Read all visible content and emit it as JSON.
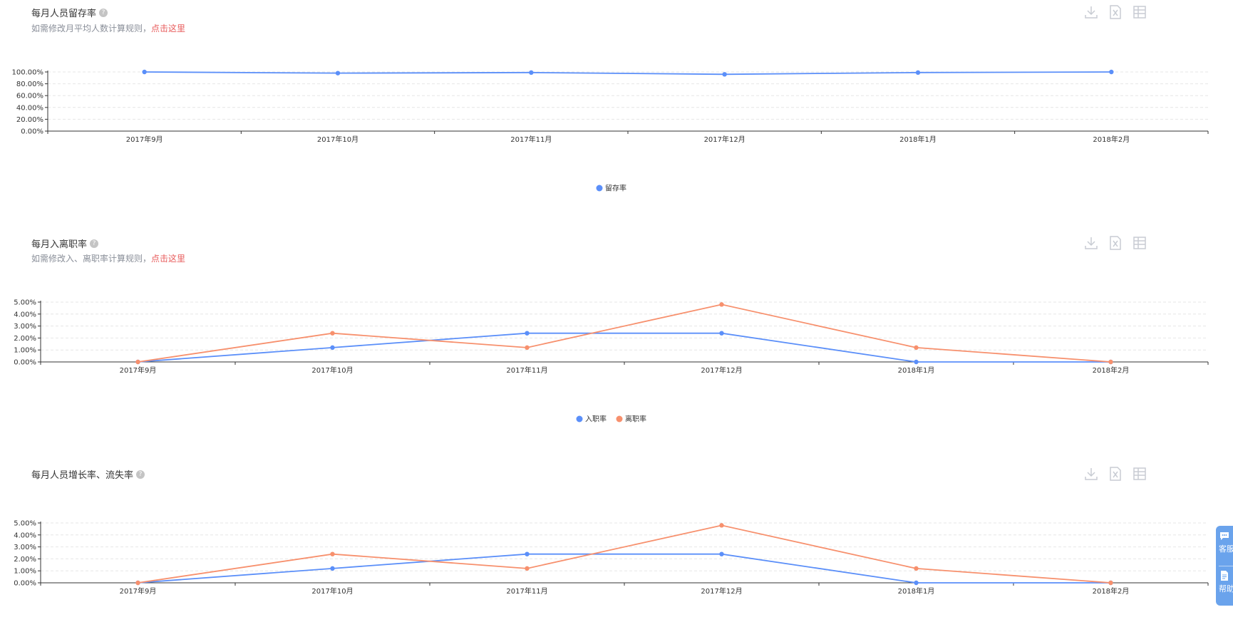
{
  "colors": {
    "blue": "#5b8ff9",
    "orange": "#f7906d",
    "link": "#e85c5c"
  },
  "toolbar_icons": [
    "download-icon",
    "excel-icon",
    "table-icon"
  ],
  "sections": [
    {
      "title": "每月人员留存率",
      "subtitle_text": "如需修改月平均人数计算规则，",
      "subtitle_link": "点击这里",
      "chart_data": {
        "type": "line",
        "categories": [
          "2017年9月",
          "2017年10月",
          "2017年11月",
          "2017年12月",
          "2018年1月",
          "2018年2月"
        ],
        "yticks": [
          "0.00%",
          "20.00%",
          "40.00%",
          "60.00%",
          "80.00%",
          "100.00%"
        ],
        "ylim": [
          0,
          100
        ],
        "series": [
          {
            "name": "留存率",
            "color": "#5b8ff9",
            "values": [
              100,
              98,
              99,
              96,
              99,
              100
            ]
          }
        ],
        "legend": "bottom-center"
      }
    },
    {
      "title": "每月入离职率",
      "subtitle_text": "如需修改入、离职率计算规则，",
      "subtitle_link": "点击这里",
      "chart_data": {
        "type": "line",
        "categories": [
          "2017年9月",
          "2017年10月",
          "2017年11月",
          "2017年12月",
          "2018年1月",
          "2018年2月"
        ],
        "yticks": [
          "0.00%",
          "1.00%",
          "2.00%",
          "3.00%",
          "4.00%",
          "5.00%"
        ],
        "ylim": [
          0,
          5
        ],
        "series": [
          {
            "name": "入职率",
            "color": "#5b8ff9",
            "values": [
              0,
              1.2,
              2.4,
              2.4,
              0,
              0
            ]
          },
          {
            "name": "离职率",
            "color": "#f7906d",
            "values": [
              0,
              2.4,
              1.2,
              4.8,
              1.2,
              0
            ]
          }
        ],
        "legend": "bottom-center"
      }
    },
    {
      "title": "每月人员增长率、流失率",
      "subtitle_text": "",
      "subtitle_link": "",
      "chart_data": {
        "type": "line",
        "categories": [
          "2017年9月",
          "2017年10月",
          "2017年11月",
          "2017年12月",
          "2018年1月",
          "2018年2月"
        ],
        "yticks": [
          "0.00%",
          "1.00%",
          "2.00%",
          "3.00%",
          "4.00%",
          "5.00%"
        ],
        "ylim": [
          0,
          5
        ],
        "series": [
          {
            "color": "#5b8ff9",
            "values": [
              0,
              1.2,
              2.4,
              2.4,
              0,
              0
            ]
          },
          {
            "color": "#f7906d",
            "values": [
              0,
              2.4,
              1.2,
              4.8,
              1.2,
              0
            ]
          }
        ],
        "legend": "none"
      }
    }
  ],
  "side_widget": {
    "items": [
      {
        "label": "客服",
        "icon": "chat-icon"
      },
      {
        "label": "帮助",
        "icon": "document-icon"
      }
    ]
  }
}
